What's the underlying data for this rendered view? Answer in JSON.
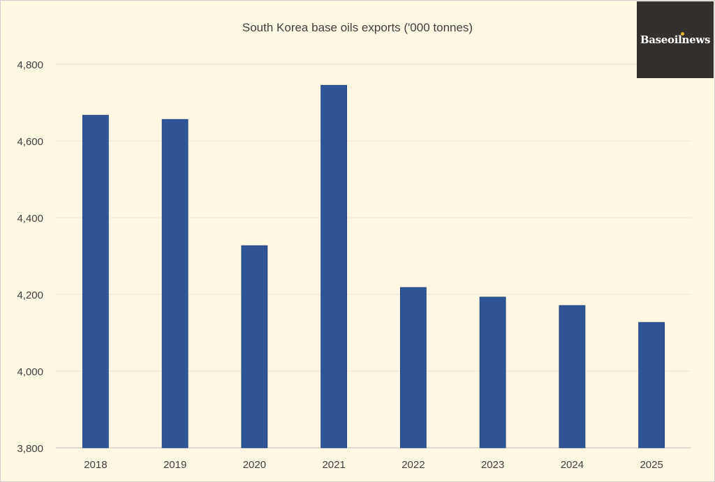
{
  "chart_data": {
    "type": "bar",
    "title": "South Korea base oils exports ('000 tonnes)",
    "categories": [
      "2018",
      "2019",
      "2020",
      "2021",
      "2022",
      "2023",
      "2024",
      "2025"
    ],
    "values": [
      4667,
      4656,
      4327,
      4745,
      4218,
      4193,
      4171,
      4127
    ],
    "xlabel": "",
    "ylabel": "",
    "ylim": [
      3800,
      4800
    ],
    "yticks": [
      3800,
      4000,
      4200,
      4400,
      4600,
      4800
    ],
    "ytick_labels": [
      "3,800",
      "4,000",
      "4,200",
      "4,400",
      "4,600",
      "4,800"
    ],
    "grid": true,
    "legend": "none",
    "colors": {
      "bar": "#2f5597",
      "background": "#fdf7e4",
      "grid": "#ece6d2"
    }
  },
  "logo": {
    "text": "Baseoilnews",
    "background": "#33302e",
    "accent": "#e3b52d"
  }
}
